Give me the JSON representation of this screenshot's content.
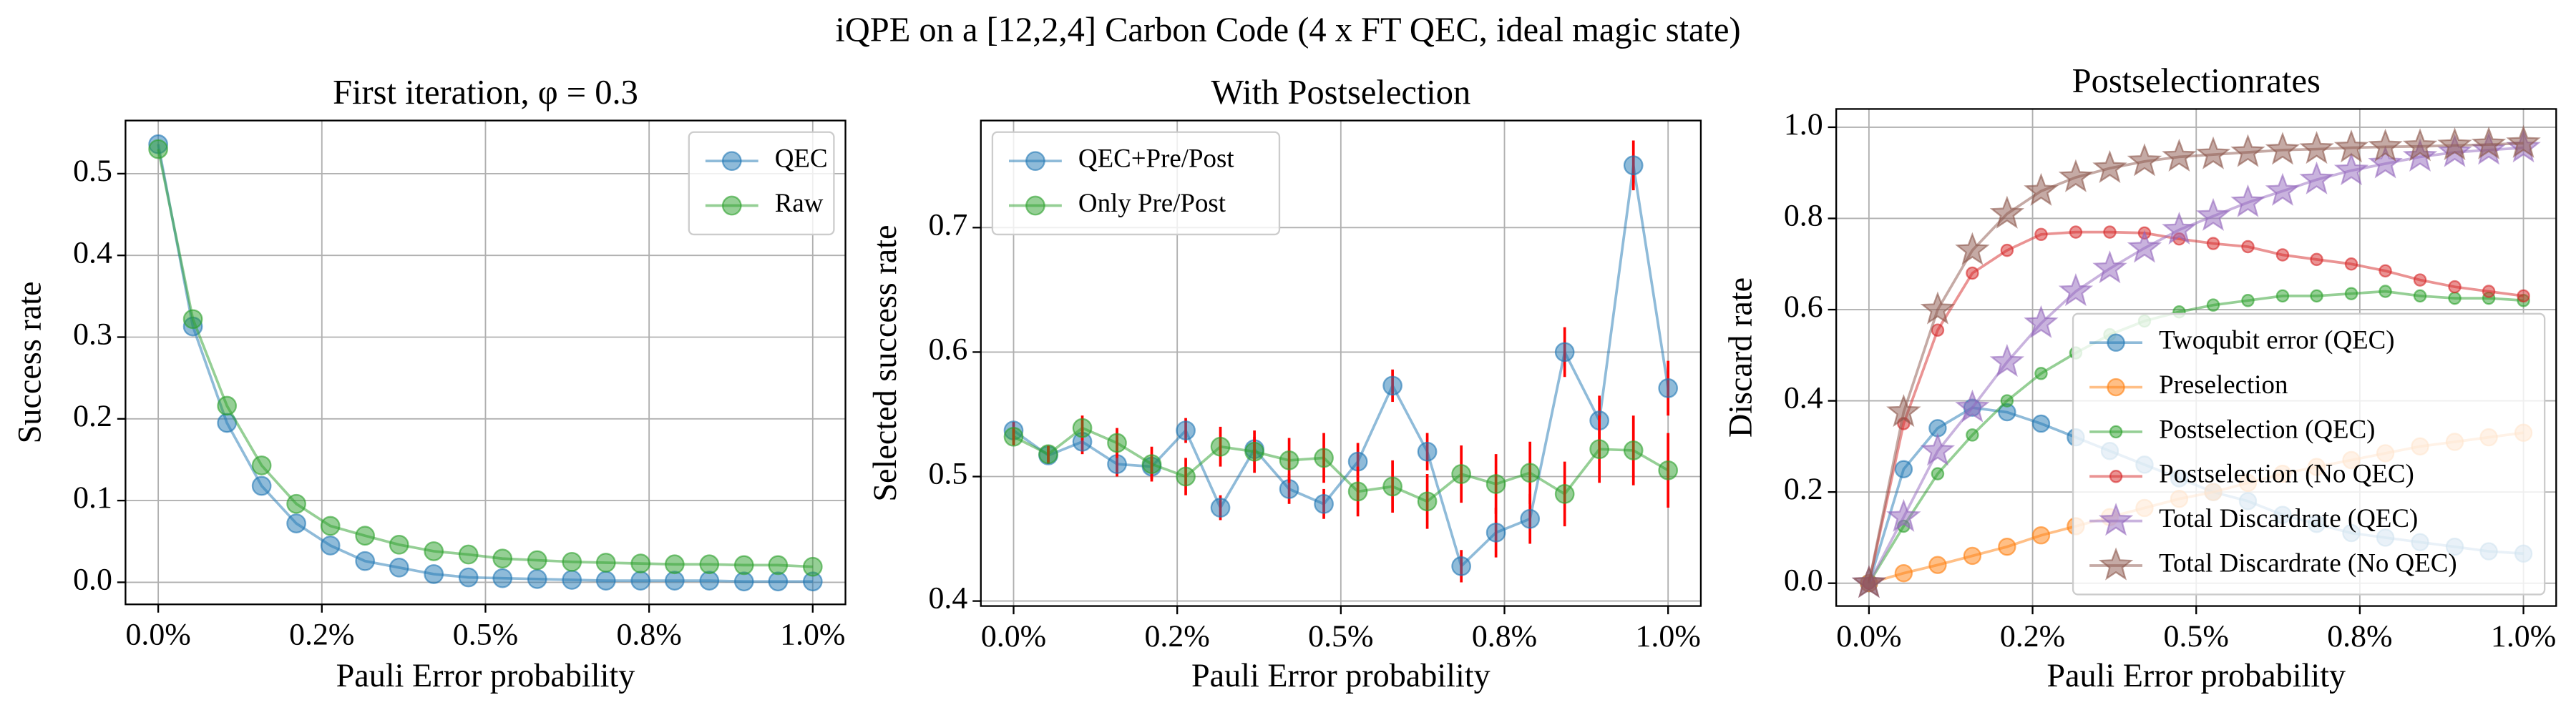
{
  "title": "iQPE on a [12,2,4] Carbon Code (4 x FT QEC, ideal magic state)",
  "chart_data": [
    {
      "type": "line",
      "title": "First iteration, φ = 0.3",
      "xlabel": "Pauli Error probability",
      "ylabel": "Success rate",
      "x": [
        0,
        0.053,
        0.105,
        0.158,
        0.211,
        0.263,
        0.316,
        0.368,
        0.421,
        0.474,
        0.526,
        0.579,
        0.632,
        0.684,
        0.737,
        0.789,
        0.842,
        0.895,
        0.947,
        1
      ],
      "xlim": [
        -0.05,
        1.05
      ],
      "xticks": [
        {
          "value": 0,
          "label": "0.0%"
        },
        {
          "value": 0.25,
          "label": "0.2%"
        },
        {
          "value": 0.5,
          "label": "0.5%"
        },
        {
          "value": 0.75,
          "label": "0.8%"
        },
        {
          "value": 1,
          "label": "1.0%"
        }
      ],
      "ylim": [
        -0.027,
        0.565
      ],
      "yticks": [
        {
          "value": 0,
          "label": "0.0"
        },
        0.1,
        0.2,
        0.3,
        0.4,
        0.5
      ],
      "grid": true,
      "legend": "upper right",
      "series": [
        {
          "name": "QEC",
          "color": "#1f77b4",
          "marker": "o",
          "markersize": 5.5,
          "values": [
            0.536,
            0.313,
            0.195,
            0.118,
            0.072,
            0.045,
            0.026,
            0.018,
            0.01,
            0.006,
            0.005,
            0.004,
            0.003,
            0.002,
            0.002,
            0.002,
            0.002,
            0.001,
            0.001,
            0.001
          ]
        },
        {
          "name": "Raw",
          "color": "#2ca02c",
          "marker": "o",
          "markersize": 5.5,
          "values": [
            0.53,
            0.322,
            0.216,
            0.143,
            0.096,
            0.069,
            0.057,
            0.046,
            0.038,
            0.034,
            0.029,
            0.027,
            0.025,
            0.024,
            0.023,
            0.022,
            0.022,
            0.021,
            0.021,
            0.019
          ]
        }
      ]
    },
    {
      "type": "line",
      "title": "With Postselection",
      "xlabel": "Pauli Error probability",
      "ylabel": "Selected success rate",
      "x": [
        0,
        0.053,
        0.105,
        0.158,
        0.211,
        0.263,
        0.316,
        0.368,
        0.421,
        0.474,
        0.526,
        0.579,
        0.632,
        0.684,
        0.737,
        0.789,
        0.842,
        0.895,
        0.947,
        1
      ],
      "xlim": [
        -0.05,
        1.05
      ],
      "xticks": [
        {
          "value": 0,
          "label": "0.0%"
        },
        {
          "value": 0.25,
          "label": "0.2%"
        },
        {
          "value": 0.5,
          "label": "0.5%"
        },
        {
          "value": 0.75,
          "label": "0.8%"
        },
        {
          "value": 1,
          "label": "1.0%"
        }
      ],
      "ylim": [
        0.396,
        0.786
      ],
      "yticks": [
        0.4,
        0.5,
        0.6,
        0.7
      ],
      "grid": true,
      "legend": "upper left",
      "error_color": "#ff0000",
      "series": [
        {
          "name": "QEC+Pre/Post",
          "color": "#1f77b4",
          "marker": "o",
          "markersize": 5.5,
          "values": [
            0.537,
            0.517,
            0.528,
            0.51,
            0.508,
            0.537,
            0.475,
            0.522,
            0.49,
            0.478,
            0.512,
            0.573,
            0.52,
            0.428,
            0.455,
            0.466,
            0.6,
            0.545,
            0.75,
            0.571
          ],
          "errors": [
            0.007,
            0.007,
            0.01,
            0.01,
            0.01,
            0.01,
            0.01,
            0.01,
            0.012,
            0.012,
            0.015,
            0.013,
            0.015,
            0.013,
            0.02,
            0.02,
            0.02,
            0.02,
            0.02,
            0.022
          ]
        },
        {
          "name": "Only Pre/Post",
          "color": "#2ca02c",
          "marker": "o",
          "markersize": 5.5,
          "values": [
            0.532,
            0.518,
            0.539,
            0.527,
            0.51,
            0.5,
            0.524,
            0.52,
            0.513,
            0.515,
            0.488,
            0.492,
            0.48,
            0.502,
            0.494,
            0.503,
            0.486,
            0.522,
            0.521,
            0.505
          ],
          "errors": [
            0.007,
            0.007,
            0.01,
            0.012,
            0.014,
            0.015,
            0.016,
            0.017,
            0.018,
            0.02,
            0.02,
            0.021,
            0.022,
            0.023,
            0.024,
            0.025,
            0.026,
            0.027,
            0.028,
            0.03
          ]
        }
      ]
    },
    {
      "type": "line",
      "title": "Postselectionrates",
      "xlabel": "Pauli Error probability",
      "ylabel": "Discard rate",
      "x": [
        0,
        0.053,
        0.105,
        0.158,
        0.211,
        0.263,
        0.316,
        0.368,
        0.421,
        0.474,
        0.526,
        0.579,
        0.632,
        0.684,
        0.737,
        0.789,
        0.842,
        0.895,
        0.947,
        1
      ],
      "xlim": [
        -0.05,
        1.05
      ],
      "xticks": [
        {
          "value": 0,
          "label": "0.0%"
        },
        {
          "value": 0.25,
          "label": "0.2%"
        },
        {
          "value": 0.5,
          "label": "0.5%"
        },
        {
          "value": 0.75,
          "label": "0.8%"
        },
        {
          "value": 1,
          "label": "1.0%"
        }
      ],
      "ylim": [
        -0.05,
        1.04
      ],
      "yticks": [
        {
          "value": 0,
          "label": "0.0"
        },
        0.2,
        0.4,
        0.6,
        0.8,
        {
          "value": 1,
          "label": "1.0"
        }
      ],
      "grid": true,
      "legend": "lower right",
      "series": [
        {
          "name": "Twoqubit error (QEC)",
          "color": "#1f77b4",
          "marker": "o",
          "markersize": 5,
          "values": [
            0,
            0.25,
            0.34,
            0.385,
            0.375,
            0.35,
            0.32,
            0.29,
            0.26,
            0.23,
            0.2,
            0.18,
            0.15,
            0.13,
            0.11,
            0.1,
            0.09,
            0.08,
            0.07,
            0.065
          ]
        },
        {
          "name": "Preselection",
          "color": "#ff7f0e",
          "marker": "o",
          "markersize": 5,
          "values": [
            0,
            0.022,
            0.04,
            0.06,
            0.08,
            0.105,
            0.125,
            0.145,
            0.165,
            0.185,
            0.2,
            0.22,
            0.24,
            0.255,
            0.27,
            0.285,
            0.3,
            0.31,
            0.32,
            0.33
          ]
        },
        {
          "name": "Postselection (QEC)",
          "color": "#2ca02c",
          "marker": "o",
          "markersize": 3.5,
          "values": [
            0,
            0.125,
            0.24,
            0.325,
            0.4,
            0.46,
            0.505,
            0.545,
            0.575,
            0.595,
            0.61,
            0.62,
            0.63,
            0.63,
            0.635,
            0.64,
            0.63,
            0.625,
            0.625,
            0.62
          ]
        },
        {
          "name": "Postselection (No QEC)",
          "color": "#d62728",
          "marker": "o",
          "markersize": 3.5,
          "values": [
            0,
            0.35,
            0.555,
            0.68,
            0.73,
            0.765,
            0.77,
            0.77,
            0.768,
            0.755,
            0.745,
            0.738,
            0.72,
            0.71,
            0.7,
            0.685,
            0.665,
            0.65,
            0.64,
            0.63
          ]
        },
        {
          "name": "Total Discardrate (QEC)",
          "color": "#9467bd",
          "marker": "*",
          "markersize": 8,
          "values": [
            0,
            0.145,
            0.29,
            0.385,
            0.485,
            0.57,
            0.64,
            0.69,
            0.735,
            0.775,
            0.805,
            0.835,
            0.86,
            0.885,
            0.905,
            0.92,
            0.935,
            0.945,
            0.95,
            0.955
          ]
        },
        {
          "name": "Total Discardrate (No QEC)",
          "color": "#8c564b",
          "marker": "*",
          "markersize": 8,
          "values": [
            0,
            0.375,
            0.6,
            0.73,
            0.81,
            0.86,
            0.89,
            0.91,
            0.925,
            0.935,
            0.94,
            0.945,
            0.95,
            0.952,
            0.955,
            0.957,
            0.958,
            0.96,
            0.962,
            0.965
          ]
        }
      ]
    }
  ]
}
